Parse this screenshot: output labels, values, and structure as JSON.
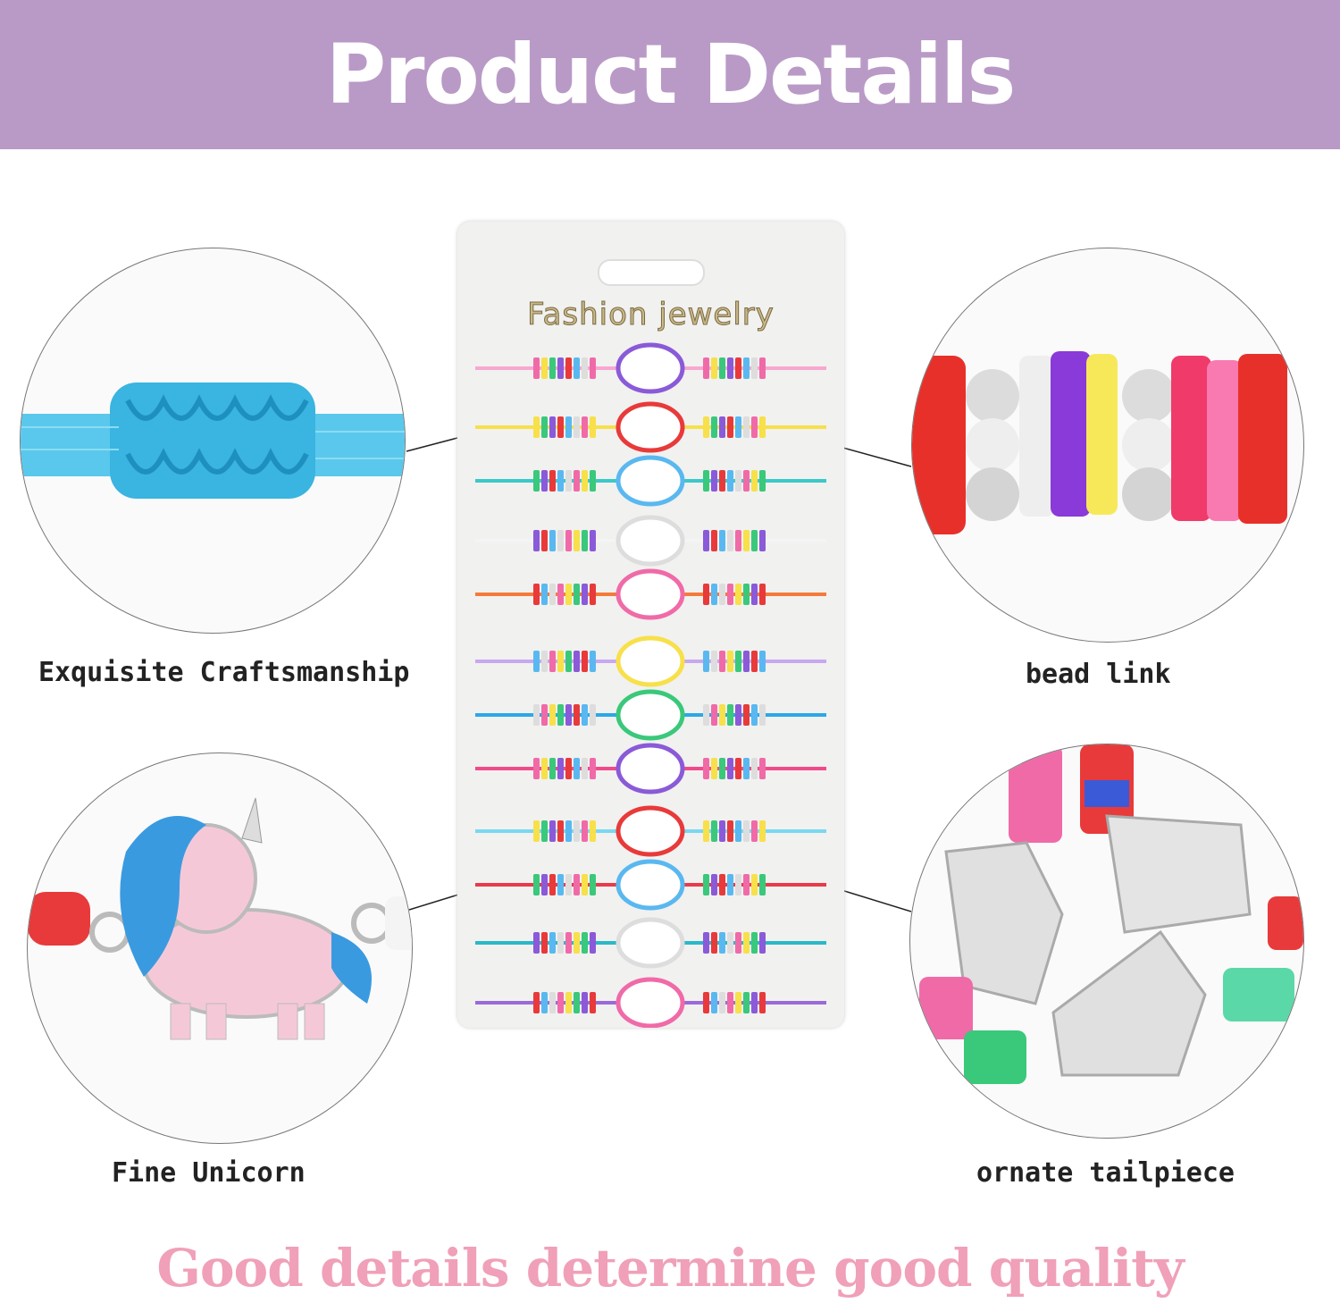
{
  "header": {
    "title": "Product Details"
  },
  "card": {
    "brand": "Fashion jewelry",
    "cord_colors": [
      "#f7a8d0",
      "#f7e04a",
      "#3cc8c8",
      "#f4f4f4",
      "#f47a3a",
      "#c8a8f0",
      "#2aa8e8",
      "#f04a8a",
      "#7ad8f0",
      "#e83a4a",
      "#2ab8c8",
      "#9a6ad8"
    ]
  },
  "details": [
    {
      "label": "Exquisite Craftsmanship",
      "icon": "knot-icon"
    },
    {
      "label": "bead link",
      "icon": "beads-icon"
    },
    {
      "label": "Fine Unicorn",
      "icon": "unicorn-icon"
    },
    {
      "label": "ornate tailpiece",
      "icon": "tailpiece-icon"
    }
  ],
  "footer": {
    "tagline": "Good details determine good quality"
  },
  "colors": {
    "header_bg": "#b99ac6",
    "tagline": "#f0a0b8"
  }
}
